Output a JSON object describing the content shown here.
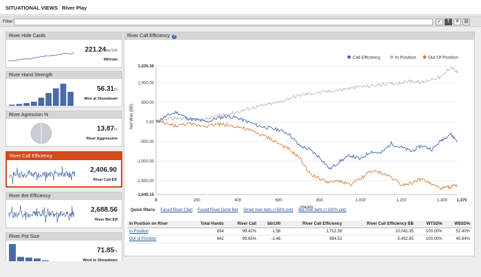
{
  "header": {
    "title": "SITUATIONAL VIEWS",
    "subtitle": "River Play"
  },
  "filter": {
    "label": "Filter:",
    "value": "",
    "icons": [
      "check-icon",
      "filter-icon",
      "clear-icon",
      "save-icon"
    ],
    "icon_glyphs": [
      "✓",
      "T",
      "✕",
      "▤"
    ]
  },
  "sidebar": {
    "cards": [
      {
        "title": "River Hole Cards",
        "value": "221.24",
        "unit": "bb/100",
        "label": "Winrate",
        "active": false,
        "spark": "line"
      },
      {
        "title": "River Hand Strength",
        "value": "56.31",
        "unit": "%",
        "label": "Won at Showdown",
        "active": false,
        "spark": "bars",
        "bars": [
          0.05,
          0.08,
          0.12,
          0.18,
          0.35,
          0.55,
          0.75,
          0.95,
          0.6
        ]
      },
      {
        "title": "River Agression %",
        "value": "13.87",
        "unit": "%",
        "label": "River Aggression",
        "active": false,
        "spark": "pie"
      },
      {
        "title": "River Call Efficiency",
        "value": "2,406.90",
        "unit": "",
        "label": "River Call Eff",
        "active": true,
        "spark": "noise"
      },
      {
        "title": "River Bet Efficiency",
        "value": "2,688.56",
        "unit": "",
        "label": "River Bet Eff",
        "active": false,
        "spark": "noise"
      },
      {
        "title": "River Pot Size",
        "value": "71.85",
        "unit": "%",
        "label": "Went to Showdown",
        "active": false,
        "spark": "bars",
        "bars": [
          1.0,
          0.45,
          0.42,
          0.38,
          0.3,
          0.25,
          0.2,
          0.12
        ]
      }
    ]
  },
  "main": {
    "title": "River Call Efficiency",
    "quick_filters_label": "Quick filters:",
    "quick_filters": [
      "Faced River Cbet",
      "Faced River Donk Bet",
      "Small river bets (<50% pot)",
      "Big river bets (>100% pot)"
    ],
    "table": {
      "headers": [
        "In Position on River",
        "Total Hands",
        "River Call",
        "bb/100",
        "River Call Efficiency",
        "River Call Efficiency BB",
        "WTSD%",
        "W$SD%"
      ],
      "rows": [
        [
          "In Position",
          "834",
          "98.42%",
          "1.58",
          "1,712.38",
          "10,041.35",
          "100.00%",
          "52.40%"
        ],
        [
          "Out of Position",
          "642",
          "99.65%",
          "-2.48",
          "694.52",
          "5,492.85",
          "100.00%",
          "45.64%"
        ]
      ]
    }
  },
  "chart_data": {
    "type": "line",
    "title": "",
    "xlabel": "Hands",
    "ylabel": "Net Won (BB)",
    "xlim": [
      0,
      1475
    ],
    "ylim": [
      -1849.15,
      1426.36
    ],
    "xticks": [
      "0",
      "200",
      "400",
      "600",
      "800",
      "1,000",
      "1,200",
      "1,400",
      "1,475"
    ],
    "xtick_values": [
      0,
      200,
      400,
      600,
      800,
      1000,
      1200,
      1400,
      1475
    ],
    "yticks": [
      "1,426.36",
      "1,000.00",
      "500.00",
      "0.00",
      "-500.00",
      "-1,000.00",
      "-1,500.00",
      "-1,849.15"
    ],
    "ytick_values": [
      1426.36,
      1000,
      500,
      0,
      -500,
      -1000,
      -1500,
      -1849.15
    ],
    "legend_position": "top-right",
    "series": [
      {
        "name": "Call Efficiency",
        "color": "#3f63ad",
        "x": [
          0,
          50,
          100,
          150,
          200,
          250,
          300,
          350,
          400,
          450,
          500,
          550,
          600,
          650,
          700,
          750,
          800,
          850,
          900,
          950,
          1000,
          1050,
          1100,
          1150,
          1200,
          1250,
          1300,
          1350,
          1400,
          1440,
          1475
        ],
        "y": [
          0,
          150,
          250,
          100,
          50,
          0,
          100,
          150,
          100,
          0,
          -100,
          -150,
          -200,
          -300,
          -600,
          -700,
          -900,
          -1200,
          -1000,
          -850,
          -950,
          -750,
          -800,
          -550,
          -650,
          -750,
          -600,
          -700,
          -450,
          -300,
          -500
        ]
      },
      {
        "name": "In Position",
        "color": "#b8b8b8",
        "x": [
          0,
          50,
          100,
          150,
          200,
          250,
          300,
          350,
          400,
          450,
          500,
          550,
          600,
          650,
          700,
          750,
          800,
          850,
          900,
          950,
          1000,
          1050,
          1100,
          1150,
          1200,
          1250,
          1300,
          1350,
          1400,
          1440,
          1475
        ],
        "y": [
          0,
          50,
          100,
          80,
          60,
          80,
          150,
          200,
          260,
          330,
          400,
          450,
          500,
          600,
          680,
          720,
          750,
          780,
          820,
          860,
          900,
          920,
          950,
          980,
          1000,
          1050,
          1000,
          1100,
          1150,
          1420,
          1250
        ]
      },
      {
        "name": "Out Of Position",
        "color": "#d97b33",
        "x": [
          0,
          50,
          100,
          150,
          200,
          250,
          300,
          350,
          400,
          450,
          500,
          550,
          600,
          650,
          700,
          750,
          800,
          850,
          900,
          950,
          1000,
          1050,
          1100,
          1150,
          1200,
          1250,
          1300,
          1350,
          1400,
          1440,
          1475
        ],
        "y": [
          0,
          -50,
          -100,
          -50,
          -80,
          -100,
          -50,
          -80,
          -120,
          -200,
          -300,
          -400,
          -550,
          -700,
          -900,
          -1300,
          -1450,
          -1550,
          -1500,
          -1600,
          -1450,
          -1250,
          -1300,
          -1400,
          -1600,
          -1550,
          -1450,
          -1600,
          -1700,
          -1650,
          -1600
        ]
      }
    ]
  }
}
